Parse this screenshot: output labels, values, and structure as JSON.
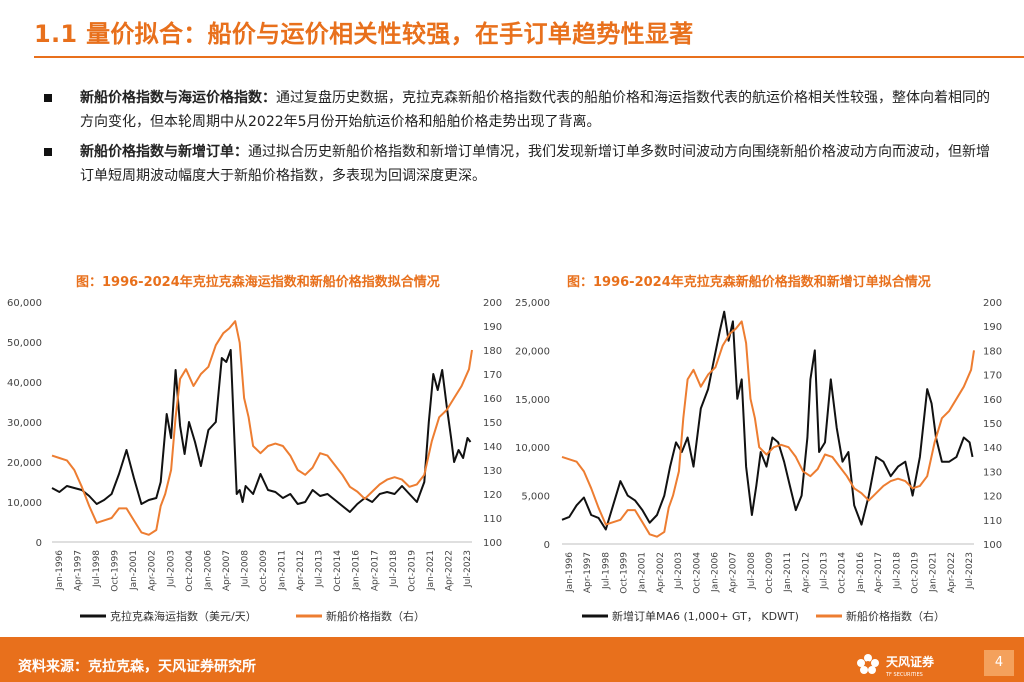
{
  "page": {
    "title": "1.1 量价拟合：船价与运价相关性较强，在手订单趋势性显著",
    "bullets": [
      {
        "bold": "新船价格指数与海运价格指数：",
        "text": "通过复盘历史数据，克拉克森新船价格指数代表的船舶价格和海运指数代表的航运价格相关性较强，整体向着相同的方向变化，但本轮周期中从2022年5月份开始航运价格和船舶价格走势出现了背离。"
      },
      {
        "bold": "新船价格指数与新增订单：",
        "text": "通过拟合历史新船价格指数和新增订单情况，我们发现新增订单多数时间波动方向围绕新船价格波动方向而波动，但新增订单短周期波动幅度大于新船价格指数，多表现为回调深度更深。"
      }
    ],
    "footer_source": "资料来源：克拉克森，天风证券研究所",
    "logo_text": "天风证券",
    "logo_sub": "TF SECURITIES",
    "page_number": "4"
  },
  "colors": {
    "accent": "#e8701c",
    "black_line": "#111111",
    "orange_line": "#ed7d31"
  },
  "chart_data": [
    {
      "type": "line",
      "title": "图：1996-2024年克拉克森海运指数和新船价格指数拟合情况",
      "x_ticks": [
        "Jan-1996",
        "Apr-1997",
        "Jul-1998",
        "Oct-1999",
        "Jan-2001",
        "Apr-2002",
        "Jul-2003",
        "Oct-2004",
        "Jan-2006",
        "Apr-2007",
        "Jul-2008",
        "Oct-2009",
        "Jan-2011",
        "Apr-2012",
        "Jul-2013",
        "Oct-2014",
        "Jan-2016",
        "Apr-2017",
        "Jul-2018",
        "Oct-2019",
        "Jan-2021",
        "Apr-2022",
        "Jul-2023"
      ],
      "y_left_ticks": [
        "0",
        "10,000",
        "20,000",
        "30,000",
        "40,000",
        "50,000",
        "60,000"
      ],
      "y_right_ticks": [
        "100",
        "110",
        "120",
        "130",
        "140",
        "150",
        "160",
        "170",
        "180",
        "190",
        "200"
      ],
      "ylim_left": [
        0,
        60000
      ],
      "ylim_right": [
        100,
        200
      ],
      "x_range": [
        1996,
        2024.2
      ],
      "series": [
        {
          "name": "克拉克森海运指数（美元/天）",
          "axis": "left",
          "color": "#111111",
          "x": [
            1996,
            1996.5,
            1997,
            1997.5,
            1998,
            1998.5,
            1999,
            1999.5,
            2000,
            2000.5,
            2001,
            2001.5,
            2002,
            2002.5,
            2003,
            2003.3,
            2003.7,
            2004,
            2004.3,
            2004.6,
            2004.9,
            2005.2,
            2005.6,
            2006,
            2006.5,
            2007,
            2007.4,
            2007.7,
            2008,
            2008.2,
            2008.4,
            2008.6,
            2008.8,
            2009,
            2009.5,
            2010,
            2010.5,
            2011,
            2011.5,
            2012,
            2012.5,
            2013,
            2013.5,
            2014,
            2014.5,
            2015,
            2015.5,
            2016,
            2016.5,
            2017,
            2017.5,
            2018,
            2018.5,
            2019,
            2019.5,
            2020,
            2020.5,
            2021,
            2021.3,
            2021.6,
            2021.9,
            2022.2,
            2022.5,
            2022.8,
            2023,
            2023.3,
            2023.6,
            2023.9,
            2024.1
          ],
          "values": [
            13500,
            12500,
            14000,
            13500,
            13000,
            11500,
            9500,
            10500,
            12000,
            17000,
            23000,
            16000,
            9500,
            10500,
            11000,
            15000,
            32000,
            26000,
            43000,
            29000,
            22000,
            30000,
            25000,
            19000,
            28000,
            30000,
            46000,
            45000,
            48000,
            30000,
            12000,
            13000,
            10000,
            14000,
            12000,
            17000,
            13000,
            12500,
            11000,
            12000,
            9500,
            10000,
            13000,
            11500,
            12000,
            10500,
            9000,
            7500,
            9500,
            11000,
            10000,
            12000,
            12500,
            12000,
            14000,
            12000,
            10000,
            15000,
            30000,
            42000,
            38000,
            43000,
            34000,
            26000,
            20000,
            23000,
            21000,
            26000,
            25000
          ]
        },
        {
          "name": "新船价格指数（右）",
          "axis": "right",
          "color": "#ed7d31",
          "x": [
            1996,
            1996.5,
            1997,
            1997.5,
            1998,
            1998.5,
            1999,
            1999.5,
            2000,
            2000.5,
            2001,
            2001.5,
            2002,
            2002.5,
            2003,
            2003.3,
            2003.6,
            2004,
            2004.3,
            2004.6,
            2005,
            2005.5,
            2006,
            2006.5,
            2007,
            2007.5,
            2007.9,
            2008.3,
            2008.6,
            2008.9,
            2009.2,
            2009.5,
            2010,
            2010.5,
            2011,
            2011.5,
            2012,
            2012.5,
            2013,
            2013.5,
            2014,
            2014.5,
            2015,
            2015.5,
            2016,
            2016.5,
            2017,
            2017.5,
            2018,
            2018.5,
            2019,
            2019.5,
            2020,
            2020.5,
            2021,
            2021.5,
            2022,
            2022.5,
            2023,
            2023.5,
            2024,
            2024.2
          ],
          "values": [
            136,
            135,
            134,
            130,
            123,
            115,
            108,
            109,
            110,
            114,
            114,
            109,
            104,
            103,
            105,
            115,
            120,
            130,
            152,
            168,
            172,
            165,
            170,
            173,
            182,
            187,
            189,
            192,
            183,
            160,
            152,
            140,
            137,
            140,
            141,
            140,
            136,
            130,
            128,
            131,
            137,
            136,
            132,
            128,
            123,
            121,
            118,
            121,
            124,
            126,
            127,
            126,
            123,
            124,
            128,
            142,
            152,
            155,
            160,
            165,
            172,
            180
          ]
        }
      ]
    },
    {
      "type": "line",
      "title": "图：1996-2024年克拉克森新船价格指数和新增订单拟合情况",
      "x_ticks": [
        "Jan-1996",
        "Apr-1997",
        "Jul-1998",
        "Oct-1999",
        "Jan-2001",
        "Apr-2002",
        "Jul-2003",
        "Oct-2004",
        "Jan-2006",
        "Apr-2007",
        "Jul-2008",
        "Oct-2009",
        "Jan-2011",
        "Apr-2012",
        "Jul-2013",
        "Oct-2014",
        "Jan-2016",
        "Apr-2017",
        "Jul-2018",
        "Oct-2019",
        "Jan-2021",
        "Apr-2022",
        "Jul-2023"
      ],
      "y_left_ticks": [
        "0",
        "5,000",
        "10,000",
        "15,000",
        "20,000",
        "25,000"
      ],
      "y_right_ticks": [
        "100",
        "110",
        "120",
        "130",
        "140",
        "150",
        "160",
        "170",
        "180",
        "190",
        "200"
      ],
      "ylim_left": [
        0,
        25000
      ],
      "ylim_right": [
        100,
        200
      ],
      "x_range": [
        1996,
        2024.2
      ],
      "series": [
        {
          "name": "新增订单MA6 (1,000+ GT， KDWT)",
          "axis": "left",
          "color": "#111111",
          "x": [
            1996,
            1996.5,
            1997,
            1997.5,
            1998,
            1998.5,
            1999,
            1999.5,
            2000,
            2000.5,
            2001,
            2001.5,
            2002,
            2002.5,
            2003,
            2003.4,
            2003.8,
            2004.2,
            2004.6,
            2005,
            2005.5,
            2006,
            2006.4,
            2006.8,
            2007.1,
            2007.4,
            2007.7,
            2008,
            2008.3,
            2008.6,
            2009,
            2009.3,
            2009.6,
            2010,
            2010.4,
            2010.8,
            2011.2,
            2011.6,
            2012,
            2012.4,
            2012.8,
            2013,
            2013.3,
            2013.6,
            2014,
            2014.4,
            2014.8,
            2015.2,
            2015.6,
            2016,
            2016.5,
            2017,
            2017.5,
            2018,
            2018.5,
            2019,
            2019.5,
            2020,
            2020.5,
            2021,
            2021.3,
            2021.6,
            2022,
            2022.5,
            2023,
            2023.5,
            2023.9,
            2024.1
          ],
          "values": [
            2500,
            2800,
            4000,
            4800,
            3000,
            2700,
            1500,
            4000,
            6500,
            5000,
            4500,
            3500,
            2200,
            3000,
            5000,
            8000,
            10500,
            9500,
            11000,
            8000,
            14000,
            16000,
            19000,
            22000,
            24000,
            21000,
            23000,
            15000,
            17000,
            8000,
            3000,
            6000,
            9500,
            8000,
            11000,
            10500,
            8500,
            6000,
            3500,
            5000,
            11000,
            17000,
            20000,
            9500,
            10500,
            17000,
            12000,
            8500,
            9500,
            4000,
            2000,
            5000,
            9000,
            8500,
            7000,
            8000,
            8500,
            5000,
            9000,
            16000,
            14500,
            11000,
            8500,
            8500,
            9000,
            11000,
            10500,
            9000
          ]
        },
        {
          "name": "新船价格指数（右）",
          "axis": "right",
          "color": "#ed7d31",
          "x": [
            1996,
            1996.5,
            1997,
            1997.5,
            1998,
            1998.5,
            1999,
            1999.5,
            2000,
            2000.5,
            2001,
            2001.5,
            2002,
            2002.5,
            2003,
            2003.3,
            2003.6,
            2004,
            2004.3,
            2004.6,
            2005,
            2005.5,
            2006,
            2006.5,
            2007,
            2007.5,
            2007.9,
            2008.3,
            2008.6,
            2008.9,
            2009.2,
            2009.5,
            2010,
            2010.5,
            2011,
            2011.5,
            2012,
            2012.5,
            2013,
            2013.5,
            2014,
            2014.5,
            2015,
            2015.5,
            2016,
            2016.5,
            2017,
            2017.5,
            2018,
            2018.5,
            2019,
            2019.5,
            2020,
            2020.5,
            2021,
            2021.5,
            2022,
            2022.5,
            2023,
            2023.5,
            2024,
            2024.2
          ],
          "values": [
            136,
            135,
            134,
            130,
            123,
            115,
            108,
            109,
            110,
            114,
            114,
            109,
            104,
            103,
            105,
            115,
            120,
            130,
            152,
            168,
            172,
            165,
            170,
            173,
            182,
            187,
            189,
            192,
            183,
            160,
            152,
            140,
            137,
            140,
            141,
            140,
            136,
            130,
            128,
            131,
            137,
            136,
            132,
            128,
            123,
            121,
            118,
            121,
            124,
            126,
            127,
            126,
            123,
            124,
            128,
            142,
            152,
            155,
            160,
            165,
            172,
            180
          ]
        }
      ]
    }
  ]
}
